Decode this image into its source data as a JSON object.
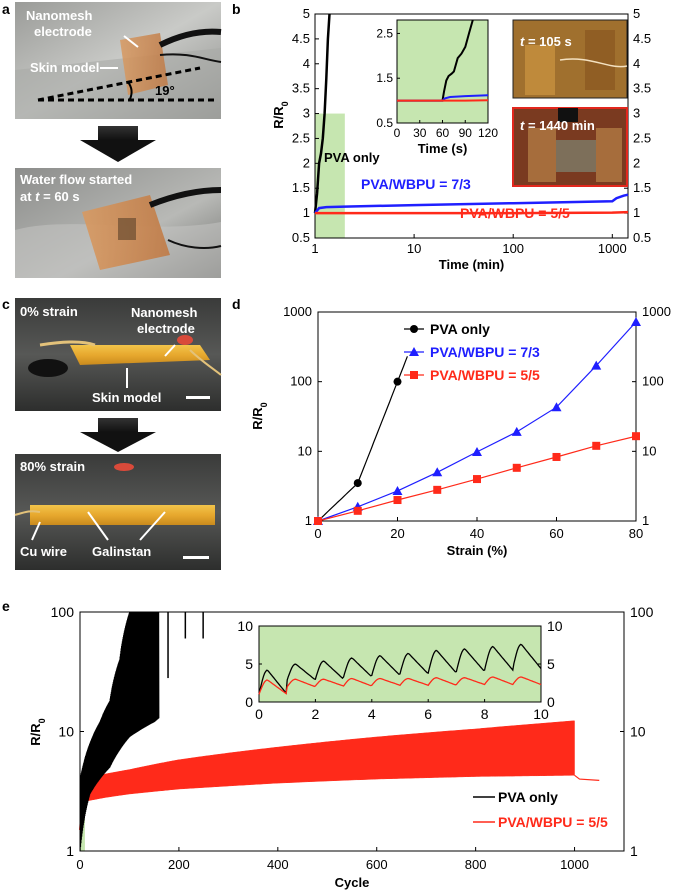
{
  "panels": {
    "a": {
      "letter": "a",
      "photo_top": {
        "label_nanomesh": "Nanomesh",
        "label_electrode": "electrode",
        "label_skin": "Skin model",
        "label_angle": "19°"
      },
      "photo_bottom": {
        "label_line1": "Water flow started",
        "label_line2_prefix": "at ",
        "label_line2_var": "t",
        "label_line2_suffix": " = 60 s"
      }
    },
    "b": {
      "letter": "b",
      "pva_only_label": "PVA only",
      "label_73": "PVA/WBPU = 7/3",
      "label_55": "PVA/WBPU = 5/5",
      "photo1_var": "t",
      "photo1_text": " = 105 s",
      "photo2_var": "t",
      "photo2_text": " = 1440 min",
      "inset_xlabel": "Time (s)"
    },
    "c": {
      "letter": "c",
      "photo_top": {
        "strain": "0% strain",
        "nanomesh": "Nanomesh",
        "electrode": "electrode",
        "skin": "Skin model"
      },
      "photo_bottom": {
        "strain": "80% strain",
        "cu_wire": "Cu wire",
        "galinstan": "Galinstan"
      }
    },
    "d": {
      "letter": "d"
    },
    "e": {
      "letter": "e"
    }
  },
  "colors": {
    "pva": "#000000",
    "pva_wbpu_73": "#1f1fff",
    "pva_wbpu_55": "#ff2a1a",
    "highlight": "#c6e6b0"
  },
  "chart_data": [
    {
      "id": "b-main",
      "type": "line",
      "xlabel": "Time (min)",
      "ylabel": "R/R0",
      "xscale": "log",
      "xlim": [
        1,
        1440
      ],
      "ylim": [
        0.5,
        5
      ],
      "xticks": [
        "1",
        "10",
        "100",
        "1000"
      ],
      "yticks": [
        "0.5",
        "1",
        "1.5",
        "2",
        "2.5",
        "3",
        "3.5",
        "4",
        "4.5",
        "5"
      ],
      "shaded_region_x": [
        1,
        2
      ],
      "series": [
        {
          "name": "PVA only",
          "x": [
            1,
            1.05,
            1.1,
            1.15,
            1.2,
            1.25,
            1.3,
            1.35,
            1.4
          ],
          "y": [
            1.0,
            1.4,
            2.0,
            2.2,
            2.5,
            3.0,
            3.7,
            4.5,
            5.0
          ]
        },
        {
          "name": "PVA/WBPU = 7/3",
          "x": [
            1,
            1.1,
            1.3,
            2,
            10,
            100,
            1000,
            1100,
            1300,
            1440
          ],
          "y": [
            1.0,
            1.1,
            1.12,
            1.13,
            1.16,
            1.2,
            1.24,
            1.3,
            1.35,
            1.37
          ]
        },
        {
          "name": "PVA/WBPU = 5/5",
          "x": [
            1,
            10,
            100,
            1000,
            1440
          ],
          "y": [
            1.0,
            1.0,
            1.0,
            1.01,
            1.02
          ]
        }
      ]
    },
    {
      "id": "b-inset",
      "type": "line",
      "xlabel": "Time (s)",
      "xlim": [
        0,
        120
      ],
      "ylim": [
        0.5,
        2.8
      ],
      "xticks": [
        "0",
        "30",
        "60",
        "90",
        "120"
      ],
      "yticks": [
        "0.5",
        "1.5",
        "2.5"
      ],
      "series": [
        {
          "name": "PVA only",
          "x": [
            0,
            60,
            62,
            65,
            68,
            72,
            75,
            80,
            85,
            90,
            95,
            100
          ],
          "y": [
            1.0,
            1.0,
            1.2,
            1.45,
            1.55,
            1.6,
            1.65,
            1.95,
            2.05,
            2.2,
            2.5,
            2.8
          ]
        },
        {
          "name": "PVA/WBPU = 7/3",
          "x": [
            0,
            60,
            63,
            70,
            90,
            120
          ],
          "y": [
            1.0,
            1.0,
            1.05,
            1.08,
            1.1,
            1.12
          ]
        },
        {
          "name": "PVA/WBPU = 5/5",
          "x": [
            0,
            60,
            90,
            120
          ],
          "y": [
            1.0,
            1.0,
            1.0,
            1.01
          ]
        }
      ]
    },
    {
      "id": "d",
      "type": "line",
      "xlabel": "Strain (%)",
      "ylabel": "R/R0",
      "yscale": "log",
      "xlim": [
        0,
        80
      ],
      "ylim": [
        1,
        1000
      ],
      "xticks": [
        "0",
        "20",
        "40",
        "60",
        "80"
      ],
      "yticks": [
        "1",
        "10",
        "100",
        "1000"
      ],
      "legend": "top-left",
      "series": [
        {
          "name": "PVA only",
          "x": [
            0,
            10,
            20
          ],
          "y": [
            1,
            3.5,
            100
          ]
        },
        {
          "name": "PVA/WBPU = 7/3",
          "x": [
            0,
            10,
            20,
            30,
            40,
            50,
            60,
            70,
            80
          ],
          "y": [
            1,
            1.6,
            2.7,
            5,
            9.8,
            19,
            43,
            170,
            720
          ]
        },
        {
          "name": "PVA/WBPU = 5/5",
          "x": [
            0,
            10,
            20,
            30,
            40,
            50,
            60,
            70,
            80
          ],
          "y": [
            1,
            1.4,
            2,
            2.8,
            4,
            5.8,
            8.3,
            12,
            16.5
          ]
        }
      ]
    },
    {
      "id": "e-main",
      "type": "line",
      "xlabel": "Cycle",
      "ylabel": "R/R0",
      "yscale": "log",
      "xlim": [
        0,
        1100
      ],
      "ylim": [
        1,
        100
      ],
      "xticks": [
        "0",
        "200",
        "400",
        "600",
        "800",
        "1000"
      ],
      "yticks": [
        "1",
        "10",
        "100"
      ],
      "legend": "bottom-right",
      "shaded_region_x": [
        0,
        10
      ],
      "series": [
        {
          "name": "PVA only",
          "x": [
            0,
            20,
            40,
            60,
            80,
            100,
            150,
            180,
            250
          ],
          "y_low": [
            1,
            3,
            4,
            5,
            7,
            9,
            12,
            15,
            20
          ],
          "y_high": [
            4,
            8,
            12,
            18,
            40,
            100,
            100,
            100,
            100
          ]
        },
        {
          "name": "PVA/WBPU = 5/5",
          "x": [
            0,
            10,
            50,
            100,
            200,
            400,
            600,
            800,
            1000,
            1020,
            1050
          ],
          "y_low": [
            1.5,
            2.6,
            2.8,
            3.0,
            3.3,
            3.7,
            4.0,
            4.2,
            4.3,
            4.0,
            3.9
          ],
          "y_high": [
            3.0,
            4.0,
            4.4,
            4.8,
            5.8,
            7.4,
            9.0,
            10.5,
            12.3,
            4.0,
            3.9
          ]
        }
      ]
    },
    {
      "id": "e-inset",
      "type": "line",
      "xlim": [
        0,
        10
      ],
      "ylim": [
        0,
        10
      ],
      "xticks": [
        "0",
        "2",
        "4",
        "6",
        "8",
        "10"
      ],
      "yticks": [
        "0",
        "5",
        "10"
      ],
      "series": [
        {
          "name": "PVA only",
          "cycles": 10,
          "peak": [
            4.2,
            5.0,
            5.4,
            5.8,
            6.1,
            6.4,
            6.8,
            7.0,
            7.3,
            7.6
          ],
          "trough": [
            1.0,
            2.9,
            3.0,
            3.3,
            3.5,
            3.7,
            3.8,
            4.0,
            4.2,
            4.4
          ]
        },
        {
          "name": "PVA/WBPU = 5/5",
          "cycles": 10,
          "peak": [
            2.9,
            3.0,
            3.0,
            3.1,
            3.1,
            3.1,
            3.2,
            3.2,
            3.3,
            3.3
          ],
          "trough": [
            1.0,
            2.0,
            2.1,
            2.1,
            2.2,
            2.2,
            2.2,
            2.3,
            2.3,
            2.3
          ]
        }
      ]
    }
  ]
}
